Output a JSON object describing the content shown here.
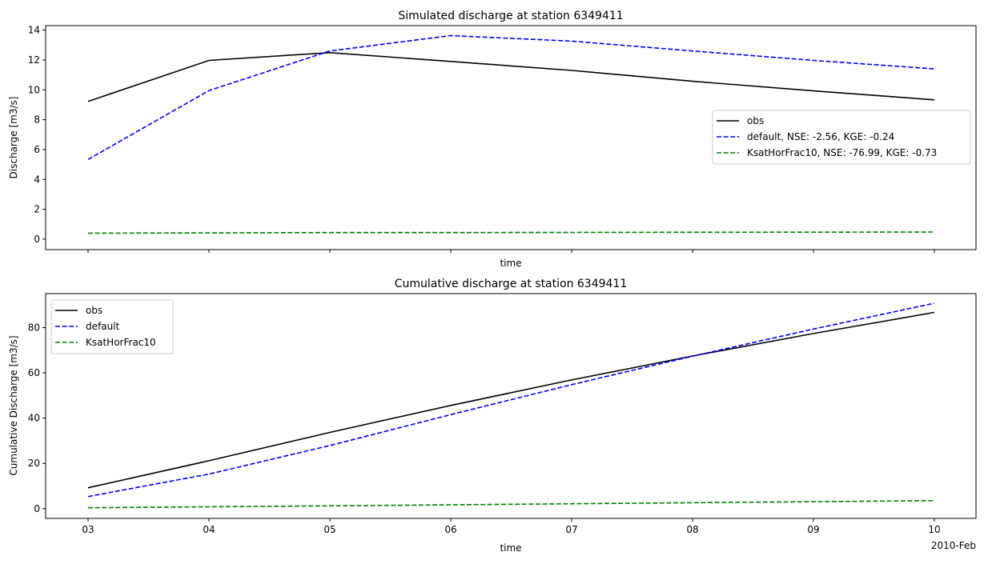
{
  "figure": {
    "x_tick_labels": [
      "03",
      "04",
      "05",
      "06",
      "07",
      "08",
      "09",
      "10"
    ],
    "x_offset_label": "2010-Feb"
  },
  "chart_data": [
    {
      "type": "line",
      "title": "Simulated discharge at station 6349411",
      "xlabel": "time",
      "ylabel": "Discharge [m3/s]",
      "x": [
        "2010-02-03",
        "2010-02-04",
        "2010-02-05",
        "2010-02-06",
        "2010-02-07",
        "2010-02-08",
        "2010-02-09",
        "2010-02-10"
      ],
      "categories": [
        "03",
        "04",
        "05",
        "06",
        "07",
        "08",
        "09",
        "10"
      ],
      "ylim": [
        -0.7,
        14.3
      ],
      "yticks": [
        0,
        2,
        4,
        6,
        8,
        10,
        12,
        14
      ],
      "show_x_tick_labels": false,
      "grid": false,
      "legend_position": "center right",
      "series": [
        {
          "name": "obs",
          "legend_label": "obs",
          "color": "#000000",
          "style": "solid",
          "values": [
            9.22,
            11.97,
            12.49,
            11.9,
            11.3,
            10.57,
            9.93,
            9.33
          ]
        },
        {
          "name": "default",
          "legend_label": "default, NSE: -2.56, KGE: -0.24",
          "color": "#0000ff",
          "style": "dashed",
          "values": [
            5.34,
            9.95,
            12.6,
            13.63,
            13.26,
            12.6,
            11.97,
            11.4
          ]
        },
        {
          "name": "KsatHorFrac10",
          "legend_label": "KsatHorFrac10, NSE: -76.99, KGE: -0.73",
          "color": "#008000",
          "style": "dashed",
          "values": [
            0.4,
            0.42,
            0.44,
            0.44,
            0.45,
            0.46,
            0.47,
            0.48
          ]
        }
      ]
    },
    {
      "type": "line",
      "title": "Cumulative discharge at station 6349411",
      "xlabel": "time",
      "ylabel": "Cumulative Discharge [m3/s]",
      "x": [
        "2010-02-03",
        "2010-02-04",
        "2010-02-05",
        "2010-02-06",
        "2010-02-07",
        "2010-02-08",
        "2010-02-09",
        "2010-02-10"
      ],
      "categories": [
        "03",
        "04",
        "05",
        "06",
        "07",
        "08",
        "09",
        "10"
      ],
      "ylim": [
        -4.3,
        95.0
      ],
      "yticks": [
        0,
        20,
        40,
        60,
        80
      ],
      "show_x_tick_labels": true,
      "grid": false,
      "legend_position": "upper left",
      "series": [
        {
          "name": "obs",
          "legend_label": "obs",
          "color": "#000000",
          "style": "solid",
          "values": [
            9.22,
            21.19,
            33.68,
            45.58,
            56.88,
            67.45,
            77.38,
            86.71
          ]
        },
        {
          "name": "default",
          "legend_label": "default",
          "color": "#0000ff",
          "style": "dashed",
          "values": [
            5.34,
            15.29,
            27.89,
            41.52,
            54.78,
            67.38,
            79.35,
            90.75
          ]
        },
        {
          "name": "KsatHorFrac10",
          "legend_label": "KsatHorFrac10",
          "color": "#008000",
          "style": "dashed",
          "values": [
            0.4,
            0.82,
            1.26,
            1.7,
            2.15,
            2.61,
            3.08,
            3.56
          ]
        }
      ]
    }
  ]
}
